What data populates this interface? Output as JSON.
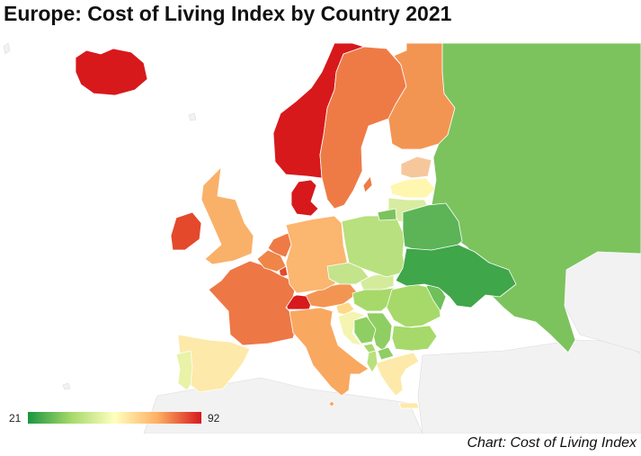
{
  "title": "Europe: Cost of Living Index by Country 2021",
  "source": "Chart: Cost of Living Index",
  "legend": {
    "min": "21",
    "max": "92",
    "colors": [
      "#1a9641",
      "#a6d96a",
      "#ffffbf",
      "#fdae61",
      "#d7191c"
    ]
  },
  "colors": {
    "no_data": "#f2f2f2",
    "water": "#ffffff",
    "border": "#ffffff"
  },
  "chart_data": {
    "type": "choropleth",
    "title": "Europe: Cost of Living Index by Country 2021",
    "value_range": [
      21,
      92
    ],
    "countries": [
      {
        "name": "Iceland",
        "color": "#d7191c"
      },
      {
        "name": "Norway",
        "color": "#d7191c"
      },
      {
        "name": "Switzerland",
        "color": "#d7191c"
      },
      {
        "name": "Denmark",
        "color": "#d7191c"
      },
      {
        "name": "Ireland",
        "color": "#e4492b"
      },
      {
        "name": "Luxembourg",
        "color": "#e4492b"
      },
      {
        "name": "Sweden",
        "color": "#ee7b46"
      },
      {
        "name": "Finland",
        "color": "#f39552"
      },
      {
        "name": "France",
        "color": "#ee7746"
      },
      {
        "name": "Netherlands",
        "color": "#ee7b46"
      },
      {
        "name": "Belgium",
        "color": "#f08548"
      },
      {
        "name": "Austria",
        "color": "#f39552"
      },
      {
        "name": "United Kingdom",
        "color": "#f9b16a"
      },
      {
        "name": "Germany",
        "color": "#fbb66f"
      },
      {
        "name": "Italy",
        "color": "#f9a860"
      },
      {
        "name": "Malta",
        "color": "#f9a860"
      },
      {
        "name": "Estonia",
        "color": "#f7c79c"
      },
      {
        "name": "Slovenia",
        "color": "#fdd98a"
      },
      {
        "name": "Spain",
        "color": "#fde9a9"
      },
      {
        "name": "Portugal",
        "color": "#e9f2a6"
      },
      {
        "name": "Greece",
        "color": "#fde9a9"
      },
      {
        "name": "Latvia",
        "color": "#fff6b0"
      },
      {
        "name": "Lithuania",
        "color": "#d8eca0"
      },
      {
        "name": "Slovakia",
        "color": "#d5eb9c"
      },
      {
        "name": "Croatia",
        "color": "#f5f4b0"
      },
      {
        "name": "Czechia",
        "color": "#c3e48a"
      },
      {
        "name": "Poland",
        "color": "#b8e07e"
      },
      {
        "name": "Hungary",
        "color": "#a6d96a"
      },
      {
        "name": "Romania",
        "color": "#a6d96a"
      },
      {
        "name": "Bulgaria",
        "color": "#a6d96a"
      },
      {
        "name": "Serbia",
        "color": "#8fce62"
      },
      {
        "name": "Bosnia and Herzegovina",
        "color": "#8fce62"
      },
      {
        "name": "Montenegro",
        "color": "#a6d96a"
      },
      {
        "name": "Albania",
        "color": "#b8e07e"
      },
      {
        "name": "North Macedonia",
        "color": "#8fce62"
      },
      {
        "name": "Moldova",
        "color": "#6fbf5b"
      },
      {
        "name": "Russia",
        "color": "#7cc35e"
      },
      {
        "name": "Belarus",
        "color": "#5cb457"
      },
      {
        "name": "Ukraine",
        "color": "#3fa64a"
      }
    ]
  }
}
